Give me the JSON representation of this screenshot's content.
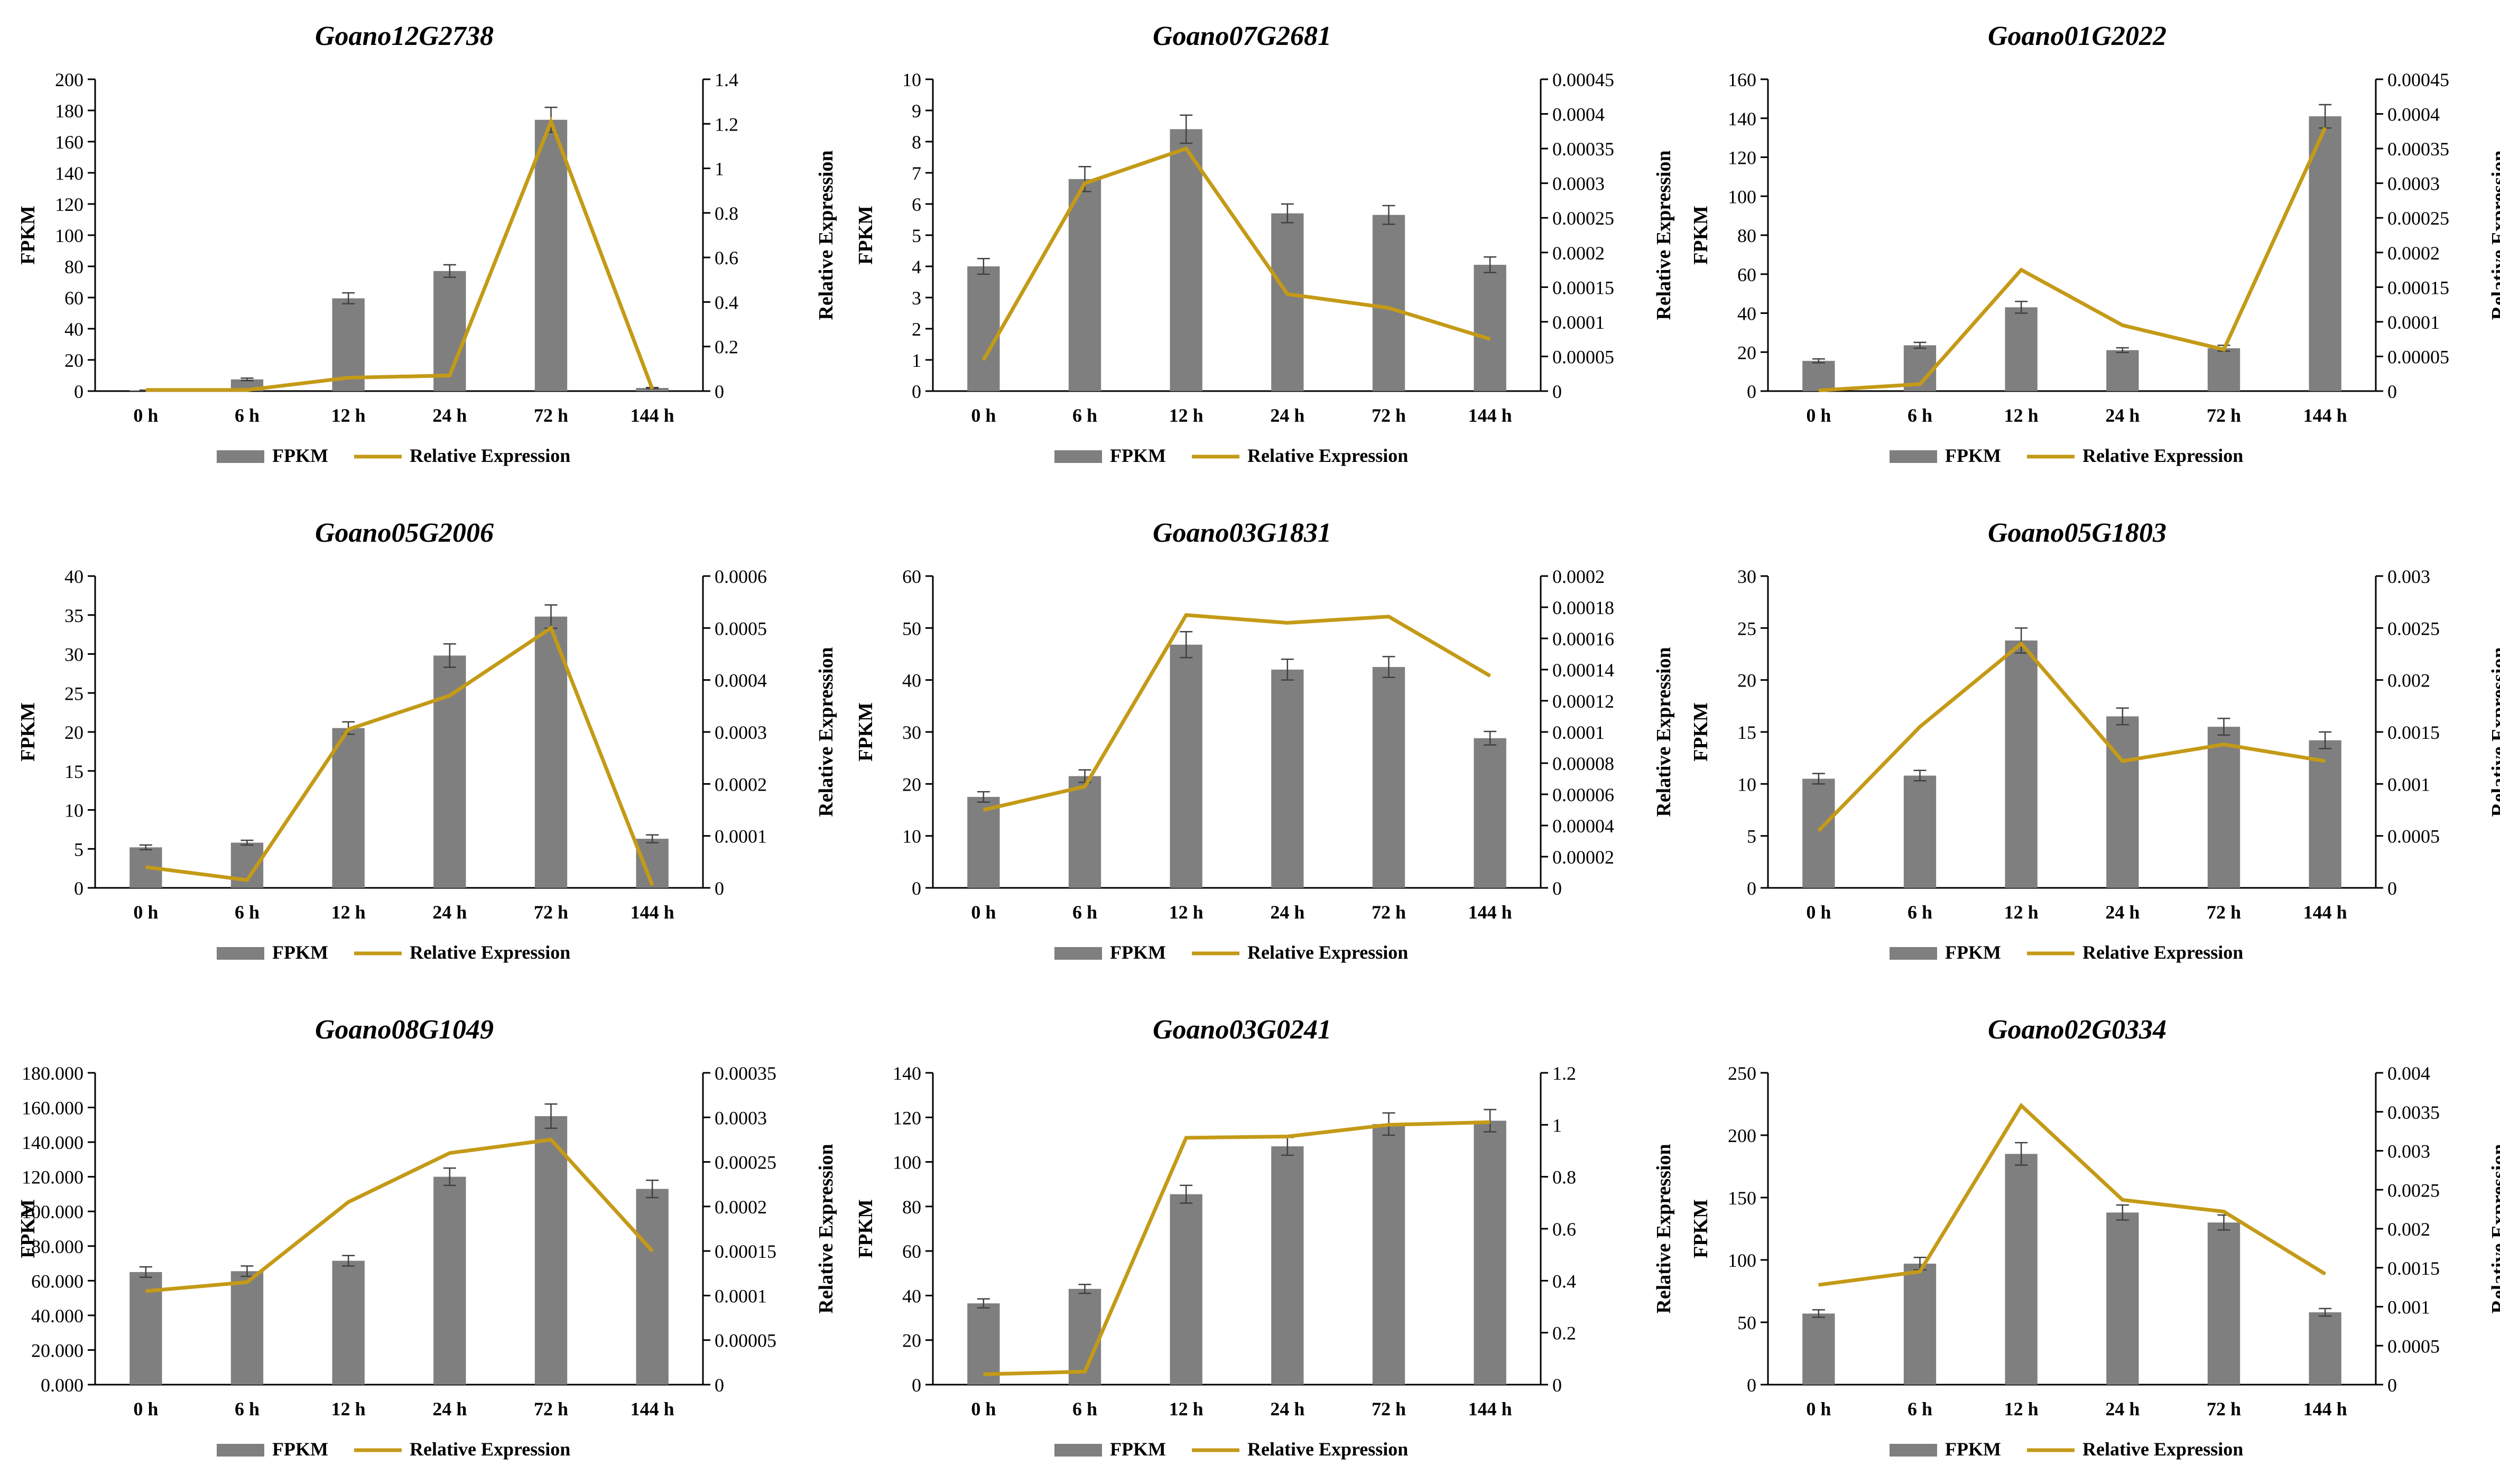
{
  "chart_data": [
    {
      "type": "bar-line",
      "title": "Goano12G2738",
      "categories": [
        "0 h",
        "6 h",
        "12 h",
        "24 h",
        "72 h",
        "144 h"
      ],
      "ylabel": "FPKM",
      "y2label": "Relative Expression",
      "ylim": [
        0,
        200
      ],
      "yticks": [
        "0",
        "20",
        "40",
        "60",
        "80",
        "100",
        "120",
        "140",
        "160",
        "180",
        "200"
      ],
      "y2lim": [
        0,
        1.4
      ],
      "y2ticks": [
        "0",
        "0.2",
        "0.4",
        "0.6",
        "0.8",
        "1",
        "1.2",
        "1.4"
      ],
      "series": [
        {
          "name": "FPKM",
          "kind": "bar",
          "values": [
            0.5,
            7.5,
            59.5,
            77,
            174,
            2
          ],
          "errors": [
            0.1,
            0.8,
            3.5,
            4,
            8,
            0.3
          ]
        },
        {
          "name": "Relative Expression",
          "kind": "line",
          "values": [
            0.005,
            0.005,
            0.06,
            0.07,
            1.21,
            0.01
          ]
        }
      ]
    },
    {
      "type": "bar-line",
      "title": "Goano07G2681",
      "categories": [
        "0 h",
        "6 h",
        "12 h",
        "24 h",
        "72 h",
        "144 h"
      ],
      "ylabel": "FPKM",
      "y2label": "Relative Expression",
      "ylim": [
        0,
        10
      ],
      "yticks": [
        "0",
        "1",
        "2",
        "3",
        "4",
        "5",
        "6",
        "7",
        "8",
        "9",
        "10"
      ],
      "y2lim": [
        0,
        0.00045
      ],
      "y2ticks": [
        "0",
        "0.00005",
        "0.0001",
        "0.00015",
        "0.0002",
        "0.00025",
        "0.0003",
        "0.00035",
        "0.0004",
        "0.00045"
      ],
      "series": [
        {
          "name": "FPKM",
          "kind": "bar",
          "values": [
            4.0,
            6.8,
            8.4,
            5.7,
            5.65,
            4.05
          ],
          "errors": [
            0.25,
            0.4,
            0.45,
            0.3,
            0.3,
            0.25
          ]
        },
        {
          "name": "Relative Expression",
          "kind": "line",
          "values": [
            4.5e-05,
            0.0003,
            0.00035,
            0.00014,
            0.00012,
            7.5e-05
          ]
        }
      ]
    },
    {
      "type": "bar-line",
      "title": "Goano01G2022",
      "categories": [
        "0 h",
        "6 h",
        "12 h",
        "24 h",
        "72 h",
        "144 h"
      ],
      "ylabel": "FPKM",
      "y2label": "Relative Expression",
      "ylim": [
        0,
        160
      ],
      "yticks": [
        "0",
        "20",
        "40",
        "60",
        "80",
        "100",
        "120",
        "140",
        "160"
      ],
      "y2lim": [
        0,
        0.00045
      ],
      "y2ticks": [
        "0",
        "0.00005",
        "0.0001",
        "0.00015",
        "0.0002",
        "0.00025",
        "0.0003",
        "0.00035",
        "0.0004",
        "0.00045"
      ],
      "series": [
        {
          "name": "FPKM",
          "kind": "bar",
          "values": [
            15.5,
            23.5,
            43,
            21,
            22,
            141
          ],
          "errors": [
            1,
            1.5,
            3,
            1.2,
            1.5,
            6
          ]
        },
        {
          "name": "Relative Expression",
          "kind": "line",
          "values": [
            1e-06,
            1e-05,
            0.000175,
            9.5e-05,
            6e-05,
            0.00038
          ]
        }
      ]
    },
    {
      "type": "bar-line",
      "title": "Goano05G2006",
      "categories": [
        "0 h",
        "6 h",
        "12 h",
        "24 h",
        "72 h",
        "144 h"
      ],
      "ylabel": "FPKM",
      "y2label": "Relative Expression",
      "ylim": [
        0,
        40
      ],
      "yticks": [
        "0",
        "5",
        "10",
        "15",
        "20",
        "25",
        "30",
        "35",
        "40"
      ],
      "y2lim": [
        0,
        0.0006
      ],
      "y2ticks": [
        "0",
        "0.0001",
        "0.0002",
        "0.0003",
        "0.0004",
        "0.0005",
        "0.0006"
      ],
      "series": [
        {
          "name": "FPKM",
          "kind": "bar",
          "values": [
            5.2,
            5.8,
            20.5,
            29.8,
            34.8,
            6.3
          ],
          "errors": [
            0.3,
            0.3,
            0.8,
            1.5,
            1.5,
            0.5
          ]
        },
        {
          "name": "Relative Expression",
          "kind": "line",
          "values": [
            4e-05,
            1.5e-05,
            0.000305,
            0.00037,
            0.0005,
            5e-06
          ]
        }
      ]
    },
    {
      "type": "bar-line",
      "title": "Goano03G1831",
      "categories": [
        "0 h",
        "6 h",
        "12 h",
        "24 h",
        "72 h",
        "144 h"
      ],
      "ylabel": "FPKM",
      "y2label": "Relative Expression",
      "ylim": [
        0,
        60
      ],
      "yticks": [
        "0",
        "10",
        "20",
        "30",
        "40",
        "50",
        "60"
      ],
      "y2lim": [
        0,
        0.0002
      ],
      "y2ticks": [
        "0",
        "0.00002",
        "0.00004",
        "0.00006",
        "0.00008",
        "0.0001",
        "0.00012",
        "0.00014",
        "0.00016",
        "0.00018",
        "0.0002"
      ],
      "series": [
        {
          "name": "FPKM",
          "kind": "bar",
          "values": [
            17.5,
            21.5,
            46.8,
            42,
            42.5,
            28.8
          ],
          "errors": [
            1,
            1.2,
            2.5,
            2,
            2,
            1.3
          ]
        },
        {
          "name": "Relative Expression",
          "kind": "line",
          "values": [
            5e-05,
            6.5e-05,
            0.000175,
            0.00017,
            0.000174,
            0.000136
          ]
        }
      ]
    },
    {
      "type": "bar-line",
      "title": "Goano05G1803",
      "categories": [
        "0 h",
        "6 h",
        "12 h",
        "24 h",
        "72 h",
        "144 h"
      ],
      "ylabel": "FPKM",
      "y2label": "Relative Expression",
      "ylim": [
        0,
        30
      ],
      "yticks": [
        "0",
        "5",
        "10",
        "15",
        "20",
        "25",
        "30"
      ],
      "y2lim": [
        0,
        0.003
      ],
      "y2ticks": [
        "0",
        "0.0005",
        "0.001",
        "0.0015",
        "0.002",
        "0.0025",
        "0.003"
      ],
      "series": [
        {
          "name": "FPKM",
          "kind": "bar",
          "values": [
            10.5,
            10.8,
            23.8,
            16.5,
            15.5,
            14.2
          ],
          "errors": [
            0.5,
            0.5,
            1.2,
            0.8,
            0.8,
            0.8
          ]
        },
        {
          "name": "Relative Expression",
          "kind": "line",
          "values": [
            0.00055,
            0.00155,
            0.00235,
            0.00122,
            0.00138,
            0.00122
          ]
        }
      ]
    },
    {
      "type": "bar-line",
      "title": "Goano08G1049",
      "categories": [
        "0 h",
        "6 h",
        "12 h",
        "24 h",
        "72 h",
        "144 h"
      ],
      "ylabel": "FPKM",
      "y2label": "Relative Expression",
      "ylim": [
        0,
        180
      ],
      "yticks": [
        "0.000",
        "20.000",
        "40.000",
        "60.000",
        "80.000",
        "100.000",
        "120.000",
        "140.000",
        "160.000",
        "180.000"
      ],
      "y2lim": [
        0,
        0.00035
      ],
      "y2ticks": [
        "0",
        "0.00005",
        "0.0001",
        "0.00015",
        "0.0002",
        "0.00025",
        "0.0003",
        "0.00035"
      ],
      "series": [
        {
          "name": "FPKM",
          "kind": "bar",
          "values": [
            65,
            65.5,
            71.5,
            120,
            155,
            113
          ],
          "errors": [
            3,
            3,
            3,
            5,
            7,
            5
          ]
        },
        {
          "name": "Relative Expression",
          "kind": "line",
          "values": [
            0.000105,
            0.000115,
            0.000205,
            0.00026,
            0.000275,
            0.00015
          ]
        }
      ]
    },
    {
      "type": "bar-line",
      "title": "Goano03G0241",
      "categories": [
        "0 h",
        "6 h",
        "12 h",
        "24 h",
        "72 h",
        "144 h"
      ],
      "ylabel": "FPKM",
      "y2label": "Relative Expression",
      "ylim": [
        0,
        140
      ],
      "yticks": [
        "0",
        "20",
        "40",
        "60",
        "80",
        "100",
        "120",
        "140"
      ],
      "y2lim": [
        0,
        1.2
      ],
      "y2ticks": [
        "0",
        "0.2",
        "0.4",
        "0.6",
        "0.8",
        "1",
        "1.2"
      ],
      "series": [
        {
          "name": "FPKM",
          "kind": "bar",
          "values": [
            36.5,
            43,
            85.5,
            107,
            117,
            118.5
          ],
          "errors": [
            2,
            2,
            4,
            4,
            5,
            5
          ]
        },
        {
          "name": "Relative Expression",
          "kind": "line",
          "values": [
            0.04,
            0.05,
            0.95,
            0.955,
            1.0,
            1.01
          ]
        }
      ]
    },
    {
      "type": "bar-line",
      "title": "Goano02G0334",
      "categories": [
        "0 h",
        "6 h",
        "12 h",
        "24 h",
        "72 h",
        "144 h"
      ],
      "ylabel": "FPKM",
      "y2label": "Relative Expression",
      "ylim": [
        0,
        250
      ],
      "yticks": [
        "0",
        "50",
        "100",
        "150",
        "200",
        "250"
      ],
      "y2lim": [
        0,
        0.004
      ],
      "y2ticks": [
        "0",
        "0.0005",
        "0.001",
        "0.0015",
        "0.002",
        "0.0025",
        "0.003",
        "0.0035",
        "0.004"
      ],
      "series": [
        {
          "name": "FPKM",
          "kind": "bar",
          "values": [
            57,
            97,
            185,
            138,
            130,
            58
          ],
          "errors": [
            3,
            5,
            9,
            6,
            6,
            3
          ]
        },
        {
          "name": "Relative Expression",
          "kind": "line",
          "values": [
            0.00128,
            0.00145,
            0.00358,
            0.00237,
            0.00222,
            0.00142
          ]
        }
      ]
    }
  ],
  "colors": {
    "bar": "#7f7f7f",
    "line": "#c49a17",
    "axis": "#000000",
    "error": "#404040"
  }
}
